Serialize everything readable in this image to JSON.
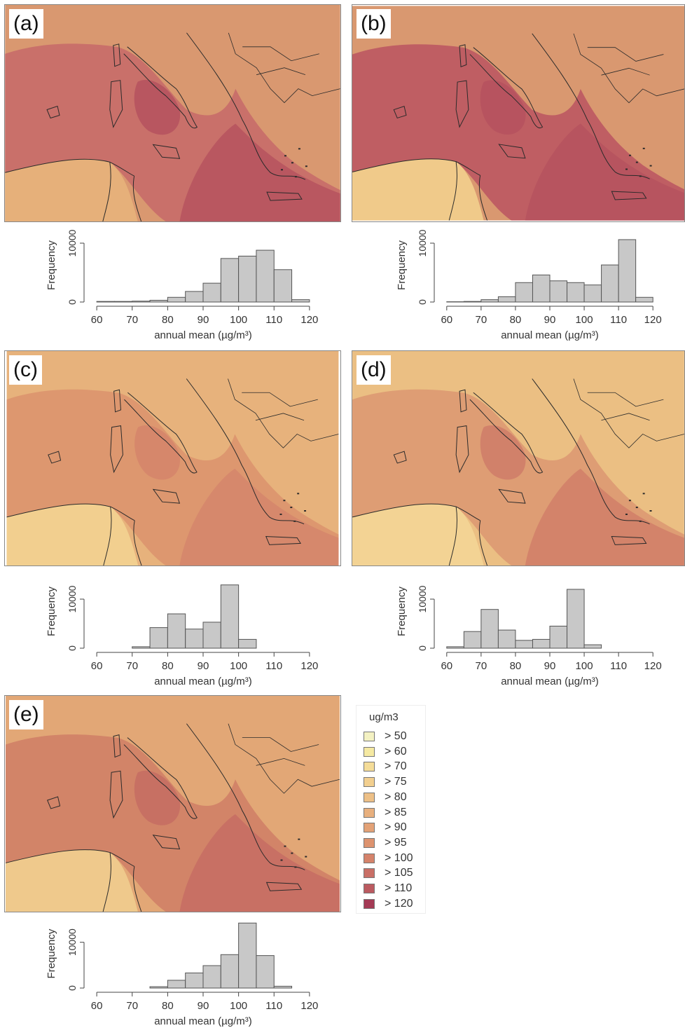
{
  "panels": [
    {
      "id": "a",
      "label": "(a)",
      "base_color": "#d99870",
      "sea_color": "#c9706a",
      "hot_color": "#b5515e",
      "land_color": "#e6b07a"
    },
    {
      "id": "b",
      "label": "(b)",
      "base_color": "#d99870",
      "sea_color": "#bf5e63",
      "hot_color": "#b5515e",
      "land_color": "#f0ca8a"
    },
    {
      "id": "c",
      "label": "(c)",
      "base_color": "#e7b27c",
      "sea_color": "#dd976f",
      "hot_color": "#d5846b",
      "land_color": "#f2cf8f"
    },
    {
      "id": "d",
      "label": "(d)",
      "base_color": "#ebbf83",
      "sea_color": "#de9d74",
      "hot_color": "#cf7d68",
      "land_color": "#f3d394"
    },
    {
      "id": "e",
      "label": "(e)",
      "base_color": "#e2a776",
      "sea_color": "#d28468",
      "hot_color": "#c56c63",
      "land_color": "#efc98c"
    }
  ],
  "legend": {
    "title": "ug/m3",
    "items": [
      {
        "label": "> 50",
        "color": "#f3f1c2"
      },
      {
        "label": "> 60",
        "color": "#f5e9a2"
      },
      {
        "label": "> 70",
        "color": "#f4dc98"
      },
      {
        "label": "> 75",
        "color": "#f2cf8f"
      },
      {
        "label": "> 80",
        "color": "#edc087"
      },
      {
        "label": "> 85",
        "color": "#e8b07e"
      },
      {
        "label": "> 90",
        "color": "#e3a277"
      },
      {
        "label": "> 95",
        "color": "#dd936f"
      },
      {
        "label": "> 100",
        "color": "#d5836b"
      },
      {
        "label": "> 105",
        "color": "#c96f66"
      },
      {
        "label": "> 110",
        "color": "#bb5a60"
      },
      {
        "label": "> 120",
        "color": "#a43a55"
      }
    ]
  },
  "chart_data": [
    {
      "type": "bar",
      "panel": "a",
      "xlabel": "annual mean (µg/m³)",
      "ylabel": "Frequency",
      "xlim": [
        58,
        122
      ],
      "xticks": [
        60,
        70,
        80,
        90,
        100,
        110,
        120
      ],
      "yticks": [
        0,
        10000
      ],
      "ylim": [
        0,
        12500
      ],
      "bins": [
        [
          60,
          65,
          100
        ],
        [
          65,
          70,
          100
        ],
        [
          70,
          75,
          150
        ],
        [
          75,
          80,
          300
        ],
        [
          80,
          85,
          800
        ],
        [
          85,
          90,
          1800
        ],
        [
          90,
          95,
          3200
        ],
        [
          95,
          100,
          7400
        ],
        [
          100,
          105,
          7800
        ],
        [
          105,
          110,
          8800
        ],
        [
          110,
          115,
          5500
        ],
        [
          115,
          120,
          400
        ]
      ]
    },
    {
      "type": "bar",
      "panel": "b",
      "xlabel": "annual mean (µg/m³)",
      "ylabel": "Frequency",
      "xlim": [
        58,
        122
      ],
      "xticks": [
        60,
        70,
        80,
        90,
        100,
        110,
        120
      ],
      "yticks": [
        0,
        10000
      ],
      "ylim": [
        0,
        12500
      ],
      "bins": [
        [
          60,
          65,
          50
        ],
        [
          65,
          70,
          100
        ],
        [
          70,
          75,
          400
        ],
        [
          75,
          80,
          900
        ],
        [
          80,
          85,
          3300
        ],
        [
          85,
          90,
          4600
        ],
        [
          90,
          95,
          3600
        ],
        [
          95,
          100,
          3300
        ],
        [
          100,
          105,
          2900
        ],
        [
          105,
          110,
          6300
        ],
        [
          110,
          115,
          10600
        ],
        [
          115,
          120,
          800
        ]
      ]
    },
    {
      "type": "bar",
      "panel": "c",
      "xlabel": "annual mean (µg/m³)",
      "ylabel": "Frequency",
      "xlim": [
        58,
        122
      ],
      "xticks": [
        60,
        70,
        80,
        90,
        100,
        110,
        120
      ],
      "yticks": [
        0,
        10000
      ],
      "ylim": [
        0,
        15000
      ],
      "bins": [
        [
          70,
          75,
          300
        ],
        [
          75,
          80,
          4200
        ],
        [
          80,
          85,
          7000
        ],
        [
          85,
          90,
          3900
        ],
        [
          90,
          95,
          5300
        ],
        [
          95,
          100,
          12900
        ],
        [
          100,
          105,
          1800
        ]
      ]
    },
    {
      "type": "bar",
      "panel": "d",
      "xlabel": "annual mean (µg/m³)",
      "ylabel": "Frequency",
      "xlim": [
        58,
        122
      ],
      "xticks": [
        60,
        70,
        80,
        90,
        100,
        110,
        120
      ],
      "yticks": [
        0,
        10000
      ],
      "ylim": [
        0,
        15000
      ],
      "bins": [
        [
          60,
          65,
          300
        ],
        [
          65,
          70,
          3400
        ],
        [
          70,
          75,
          7900
        ],
        [
          75,
          80,
          3700
        ],
        [
          80,
          85,
          1600
        ],
        [
          85,
          90,
          1800
        ],
        [
          90,
          95,
          4500
        ],
        [
          95,
          100,
          12000
        ],
        [
          100,
          105,
          700
        ]
      ]
    },
    {
      "type": "bar",
      "panel": "e",
      "xlabel": "annual mean (µg/m³)",
      "ylabel": "Frequency",
      "xlim": [
        58,
        122
      ],
      "xticks": [
        60,
        70,
        80,
        90,
        100,
        110,
        120
      ],
      "yticks": [
        0,
        10000
      ],
      "ylim": [
        0,
        15000
      ],
      "bins": [
        [
          75,
          80,
          300
        ],
        [
          80,
          85,
          1700
        ],
        [
          85,
          90,
          3300
        ],
        [
          90,
          95,
          4900
        ],
        [
          95,
          100,
          7300
        ],
        [
          100,
          105,
          14200
        ],
        [
          105,
          110,
          7100
        ],
        [
          110,
          115,
          400
        ]
      ]
    }
  ]
}
